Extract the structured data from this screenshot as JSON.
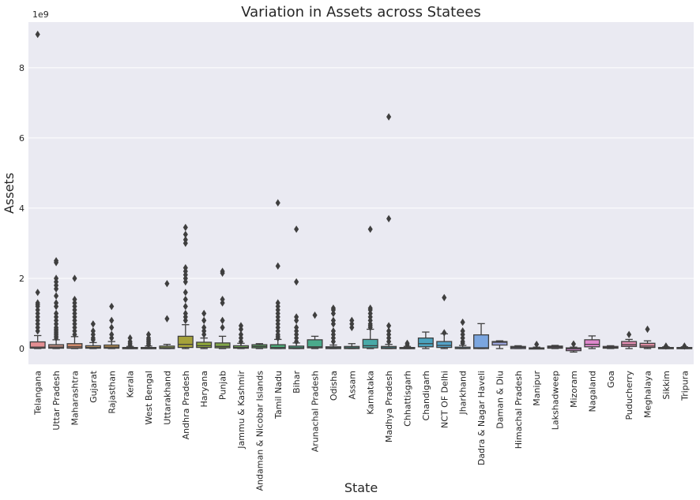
{
  "chart_data": {
    "type": "box",
    "title": "Variation in Assets across Statees",
    "xlabel": "State",
    "ylabel": "Assets",
    "y_multiplier_label": "1e9",
    "y_unit_scale": 1000000000,
    "ylim": [
      -0.45,
      9.3
    ],
    "yticks": [
      0,
      2,
      4,
      6,
      8
    ],
    "grid": true,
    "colors": {
      "plot_background": "#eaeaf2",
      "grid": "#ffffff",
      "line": "#3f3f3f",
      "palette": [
        "#e48e92",
        "#c79183",
        "#cf8a6c",
        "#c09968",
        "#c89b59",
        "#a8a359",
        "#a5a552",
        "#9aaa59",
        "#a6a23a",
        "#8ea83a",
        "#83a74b",
        "#73a85a",
        "#5eac65",
        "#4ca877",
        "#4bb08a",
        "#4aaa8b",
        "#4aae9a",
        "#49a89f",
        "#49aaa8",
        "#4aa9b4",
        "#4da8b8",
        "#4aa3bf",
        "#55a3c8",
        "#5ba7d6",
        "#7ba6e0",
        "#9da6df",
        "#a39ad8",
        "#b094dc",
        "#c08ad8",
        "#d98ad8",
        "#df88cd",
        "#dc8ac0",
        "#e28cb1",
        "#de8ca0",
        "#e28e9a",
        "#e59092"
      ]
    },
    "categories": [
      {
        "name": "Telangana",
        "q1": 0.01,
        "med": 0.04,
        "q3": 0.19,
        "wlo": 0.0,
        "whi": 0.37,
        "outliers": [
          0.5,
          0.6,
          0.7,
          0.8,
          0.9,
          1.0,
          1.1,
          1.2,
          1.25,
          1.3,
          1.6,
          8.95
        ]
      },
      {
        "name": "Uttar Pradesh",
        "q1": 0.01,
        "med": 0.04,
        "q3": 0.11,
        "wlo": 0.0,
        "whi": 0.25,
        "outliers": [
          0.3,
          0.35,
          0.4,
          0.45,
          0.5,
          0.55,
          0.6,
          0.7,
          0.8,
          0.9,
          1.0,
          1.2,
          1.3,
          1.5,
          1.7,
          1.8,
          1.9,
          2.0,
          2.45,
          2.5
        ]
      },
      {
        "name": "Maharashtra",
        "q1": 0.01,
        "med": 0.05,
        "q3": 0.14,
        "wlo": 0.0,
        "whi": 0.34,
        "outliers": [
          0.4,
          0.5,
          0.6,
          0.7,
          0.8,
          0.9,
          1.0,
          1.1,
          1.2,
          1.3,
          1.4,
          2.0
        ]
      },
      {
        "name": "Gujarat",
        "q1": 0.01,
        "med": 0.03,
        "q3": 0.08,
        "wlo": 0.0,
        "whi": 0.17,
        "outliers": [
          0.25,
          0.3,
          0.4,
          0.5,
          0.7
        ]
      },
      {
        "name": "Rajasthan",
        "q1": 0.01,
        "med": 0.04,
        "q3": 0.1,
        "wlo": 0.0,
        "whi": 0.2,
        "outliers": [
          0.3,
          0.4,
          0.6,
          0.8,
          1.2
        ]
      },
      {
        "name": "Kerala",
        "q1": 0.0,
        "med": 0.01,
        "q3": 0.03,
        "wlo": 0.0,
        "whi": 0.06,
        "outliers": [
          0.1,
          0.15,
          0.2,
          0.3
        ]
      },
      {
        "name": "West Bengal",
        "q1": 0.0,
        "med": 0.01,
        "q3": 0.03,
        "wlo": 0.0,
        "whi": 0.07,
        "outliers": [
          0.1,
          0.15,
          0.2,
          0.25,
          0.3,
          0.4
        ]
      },
      {
        "name": "Uttarakhand",
        "q1": 0.0,
        "med": 0.02,
        "q3": 0.07,
        "wlo": 0.0,
        "whi": 0.12,
        "outliers": [
          0.85,
          1.85
        ]
      },
      {
        "name": "Andhra Pradesh",
        "q1": 0.03,
        "med": 0.12,
        "q3": 0.35,
        "wlo": 0.0,
        "whi": 0.68,
        "outliers": [
          0.8,
          0.9,
          1.0,
          1.2,
          1.4,
          1.6,
          1.9,
          2.0,
          2.1,
          2.2,
          2.3,
          3.0,
          3.1,
          3.25,
          3.45
        ]
      },
      {
        "name": "Haryana",
        "q1": 0.03,
        "med": 0.08,
        "q3": 0.18,
        "wlo": 0.0,
        "whi": 0.3,
        "outliers": [
          0.4,
          0.5,
          0.6,
          0.8,
          1.0
        ]
      },
      {
        "name": "Punjab",
        "q1": 0.02,
        "med": 0.06,
        "q3": 0.16,
        "wlo": 0.0,
        "whi": 0.35,
        "outliers": [
          0.6,
          0.8,
          1.3,
          1.4,
          2.15,
          2.2
        ]
      },
      {
        "name": "Jammu & Kashmir",
        "q1": 0.01,
        "med": 0.03,
        "q3": 0.08,
        "wlo": 0.0,
        "whi": 0.15,
        "outliers": [
          0.2,
          0.3,
          0.4,
          0.55,
          0.65
        ]
      },
      {
        "name": "Andaman & Nicobar Islands",
        "q1": 0.02,
        "med": 0.06,
        "q3": 0.11,
        "wlo": 0.0,
        "whi": 0.14,
        "outliers": []
      },
      {
        "name": "Tamil Nadu",
        "q1": 0.0,
        "med": 0.03,
        "q3": 0.11,
        "wlo": 0.0,
        "whi": 0.26,
        "outliers": [
          0.3,
          0.35,
          0.4,
          0.5,
          0.6,
          0.7,
          0.8,
          0.9,
          1.0,
          1.1,
          1.2,
          1.3,
          2.35,
          4.15
        ]
      },
      {
        "name": "Bihar",
        "q1": 0.0,
        "med": 0.02,
        "q3": 0.07,
        "wlo": 0.0,
        "whi": 0.16,
        "outliers": [
          0.2,
          0.3,
          0.4,
          0.5,
          0.6,
          0.8,
          0.9,
          1.9,
          3.4
        ]
      },
      {
        "name": "Arunachal Pradesh",
        "q1": 0.02,
        "med": 0.05,
        "q3": 0.25,
        "wlo": 0.0,
        "whi": 0.35,
        "outliers": [
          0.95
        ]
      },
      {
        "name": "Odisha",
        "q1": 0.0,
        "med": 0.02,
        "q3": 0.05,
        "wlo": 0.0,
        "whi": 0.1,
        "outliers": [
          0.2,
          0.3,
          0.4,
          0.5,
          0.7,
          0.8,
          1.0,
          1.1,
          1.15
        ]
      },
      {
        "name": "Assam",
        "q1": 0.0,
        "med": 0.02,
        "q3": 0.06,
        "wlo": 0.0,
        "whi": 0.14,
        "outliers": [
          0.6,
          0.7,
          0.8
        ]
      },
      {
        "name": "Karnataka",
        "q1": 0.02,
        "med": 0.08,
        "q3": 0.26,
        "wlo": 0.0,
        "whi": 0.55,
        "outliers": [
          0.6,
          0.65,
          0.7,
          0.8,
          0.9,
          1.0,
          1.1,
          1.15,
          3.4
        ]
      },
      {
        "name": "Madhya Pradesh",
        "q1": 0.0,
        "med": 0.02,
        "q3": 0.06,
        "wlo": 0.0,
        "whi": 0.12,
        "outliers": [
          0.2,
          0.3,
          0.4,
          0.5,
          0.65,
          3.7,
          6.6
        ]
      },
      {
        "name": "Chhattisgarh",
        "q1": 0.0,
        "med": 0.01,
        "q3": 0.03,
        "wlo": 0.0,
        "whi": 0.06,
        "outliers": [
          0.1,
          0.15
        ]
      },
      {
        "name": "Chandigarh",
        "q1": 0.05,
        "med": 0.14,
        "q3": 0.3,
        "wlo": 0.0,
        "whi": 0.47,
        "outliers": []
      },
      {
        "name": "NCT OF Delhi",
        "q1": 0.03,
        "med": 0.09,
        "q3": 0.2,
        "wlo": 0.0,
        "whi": 0.42,
        "outliers": [
          0.45,
          1.45
        ]
      },
      {
        "name": "Jharkhand",
        "q1": 0.0,
        "med": 0.01,
        "q3": 0.04,
        "wlo": 0.0,
        "whi": 0.09,
        "outliers": [
          0.15,
          0.2,
          0.3,
          0.4,
          0.5,
          0.75
        ]
      },
      {
        "name": "Dadra & Nagar Haveli",
        "q1": 0.0,
        "med": 0.02,
        "q3": 0.39,
        "wlo": 0.0,
        "whi": 0.71,
        "outliers": []
      },
      {
        "name": "Daman & Diu",
        "q1": 0.1,
        "med": 0.18,
        "q3": 0.2,
        "wlo": 0.0,
        "whi": 0.22,
        "outliers": []
      },
      {
        "name": "Himachal Pradesh",
        "q1": 0.0,
        "med": 0.03,
        "q3": 0.06,
        "wlo": 0.0,
        "whi": 0.08,
        "outliers": []
      },
      {
        "name": "Manipur",
        "q1": 0.0,
        "med": 0.01,
        "q3": 0.02,
        "wlo": 0.0,
        "whi": 0.04,
        "outliers": [
          0.12
        ]
      },
      {
        "name": "Lakshadweep",
        "q1": 0.01,
        "med": 0.04,
        "q3": 0.07,
        "wlo": 0.0,
        "whi": 0.09,
        "outliers": []
      },
      {
        "name": "Mizoram",
        "q1": -0.06,
        "med": -0.01,
        "q3": 0.02,
        "wlo": -0.1,
        "whi": 0.04,
        "outliers": [
          0.13
        ]
      },
      {
        "name": "Nagaland",
        "q1": 0.05,
        "med": 0.12,
        "q3": 0.25,
        "wlo": 0.0,
        "whi": 0.36,
        "outliers": []
      },
      {
        "name": "Goa",
        "q1": 0.01,
        "med": 0.03,
        "q3": 0.06,
        "wlo": 0.0,
        "whi": 0.08,
        "outliers": []
      },
      {
        "name": "Puducherry",
        "q1": 0.06,
        "med": 0.11,
        "q3": 0.2,
        "wlo": 0.0,
        "whi": 0.26,
        "outliers": [
          0.4
        ]
      },
      {
        "name": "Meghalaya",
        "q1": 0.03,
        "med": 0.07,
        "q3": 0.15,
        "wlo": 0.0,
        "whi": 0.22,
        "outliers": [
          0.55
        ]
      },
      {
        "name": "Sikkim",
        "q1": 0.0,
        "med": 0.01,
        "q3": 0.03,
        "wlo": 0.0,
        "whi": 0.05,
        "outliers": [
          0.07
        ]
      },
      {
        "name": "Tripura",
        "q1": 0.0,
        "med": 0.01,
        "q3": 0.03,
        "wlo": 0.0,
        "whi": 0.05,
        "outliers": [
          0.07
        ]
      }
    ]
  }
}
